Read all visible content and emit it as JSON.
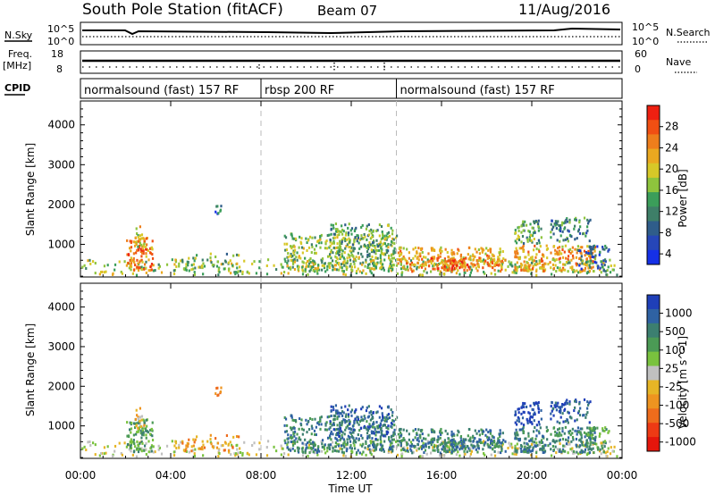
{
  "header": {
    "station": "South Pole Station (fitACF)",
    "beam": "Beam 07",
    "date": "11/Aug/2016"
  },
  "side_labels": {
    "nsky": "N.Sky",
    "freq_line1": "Freq.",
    "freq_line2": "[MHz]",
    "cpid": "CPID",
    "nsearch": "N.Search",
    "nave": "Nave"
  },
  "small_axes": {
    "nsky_ticks": [
      "10^5",
      "10^0"
    ],
    "freq_ticks": [
      "18",
      "8"
    ],
    "nsearch_ticks": [
      "10^5",
      "10^0"
    ],
    "nave_ticks": [
      "60",
      "0"
    ]
  },
  "cpid_segments": [
    {
      "label": "normalsound (fast) 157 RF",
      "start_hour": 0,
      "end_hour": 8
    },
    {
      "label": "rbsp 200 RF",
      "start_hour": 8,
      "end_hour": 14
    },
    {
      "label": "normalsound (fast) 157 RF",
      "start_hour": 14,
      "end_hour": 24
    }
  ],
  "x_axis": {
    "label": "Time UT",
    "ticks": [
      "00:00",
      "04:00",
      "08:00",
      "12:00",
      "16:00",
      "20:00",
      "00:00"
    ],
    "tick_hours": [
      0,
      4,
      8,
      12,
      16,
      20,
      24
    ],
    "range_hours": [
      0,
      24
    ]
  },
  "y_axis": {
    "label": "Slant Range [km]",
    "ticks": [
      "1000",
      "2000",
      "3000",
      "4000"
    ],
    "tick_values": [
      1000,
      2000,
      3000,
      4000
    ],
    "range_km": [
      180,
      4600
    ]
  },
  "power_colorbar": {
    "title": "Power [dB]",
    "ticks": [
      "28",
      "24",
      "20",
      "16",
      "12",
      "8",
      "4"
    ],
    "colors_top_to_bottom": [
      "#ee2011",
      "#f14f13",
      "#ee7e1c",
      "#eaa820",
      "#d7c828",
      "#8ec43d",
      "#3b9e5a",
      "#3e7f68",
      "#2f5d8a",
      "#2646b8",
      "#1530e6"
    ]
  },
  "velocity_colorbar": {
    "title": "Velocity [m s^-1]",
    "ticks": [
      "1000",
      "500",
      "100",
      "25",
      "-25",
      "-100",
      "-500",
      "-1000"
    ],
    "colors_top_to_bottom": [
      "#1f3fb8",
      "#2f62a3",
      "#3c7f70",
      "#4b9a55",
      "#79c23e",
      "#c0c0c0",
      "#e6b526",
      "#ee9420",
      "#ee6c1c",
      "#ee3a14",
      "#e5160c"
    ]
  },
  "chart_data": {
    "type": "heatmap",
    "title": "South Pole Station (fitACF)",
    "panels": [
      "power",
      "velocity"
    ],
    "xlabel": "Time UT",
    "ylabel": "Slant Range [km]",
    "xlim_hours": [
      0,
      24
    ],
    "ylim_km": [
      180,
      4600
    ],
    "grid": false,
    "scatter_regions": [
      {
        "t0": 0.0,
        "t1": 24.0,
        "r0": 250,
        "r1": 650,
        "density": 0.22,
        "power_level": 5,
        "vel_level": 5
      },
      {
        "t0": 2.0,
        "t1": 3.2,
        "r0": 350,
        "r1": 1200,
        "density": 0.55,
        "power_level": 2,
        "vel_level": 3
      },
      {
        "t0": 2.4,
        "t1": 2.8,
        "r0": 900,
        "r1": 1500,
        "density": 0.45,
        "power_level": 4,
        "vel_level": 6
      },
      {
        "t0": 5.9,
        "t1": 6.2,
        "r0": 1800,
        "r1": 2050,
        "density": 0.6,
        "power_level": 8,
        "vel_level": 8
      },
      {
        "t0": 4.3,
        "t1": 7.0,
        "r0": 350,
        "r1": 800,
        "density": 0.2,
        "power_level": 6,
        "vel_level": 7
      },
      {
        "t0": 9.0,
        "t1": 14.0,
        "r0": 350,
        "r1": 1300,
        "density": 0.45,
        "power_level": 5,
        "vel_level": 2
      },
      {
        "t0": 11.0,
        "t1": 13.8,
        "r0": 700,
        "r1": 1550,
        "density": 0.35,
        "power_level": 6,
        "vel_level": 1
      },
      {
        "t0": 14.0,
        "t1": 18.8,
        "r0": 350,
        "r1": 950,
        "density": 0.55,
        "power_level": 3,
        "vel_level": 2
      },
      {
        "t0": 15.5,
        "t1": 17.2,
        "r0": 400,
        "r1": 700,
        "density": 0.6,
        "power_level": 1,
        "vel_level": 2
      },
      {
        "t0": 19.2,
        "t1": 22.8,
        "r0": 350,
        "r1": 1000,
        "density": 0.55,
        "power_level": 3,
        "vel_level": 2
      },
      {
        "t0": 19.2,
        "t1": 20.4,
        "r0": 1050,
        "r1": 1650,
        "density": 0.5,
        "power_level": 6,
        "vel_level": 0
      },
      {
        "t0": 20.8,
        "t1": 22.6,
        "r0": 1100,
        "r1": 1700,
        "density": 0.4,
        "power_level": 7,
        "vel_level": 1
      },
      {
        "t0": 22.0,
        "t1": 23.4,
        "r0": 350,
        "r1": 1000,
        "density": 0.35,
        "power_level": 8,
        "vel_level": 3
      }
    ]
  }
}
